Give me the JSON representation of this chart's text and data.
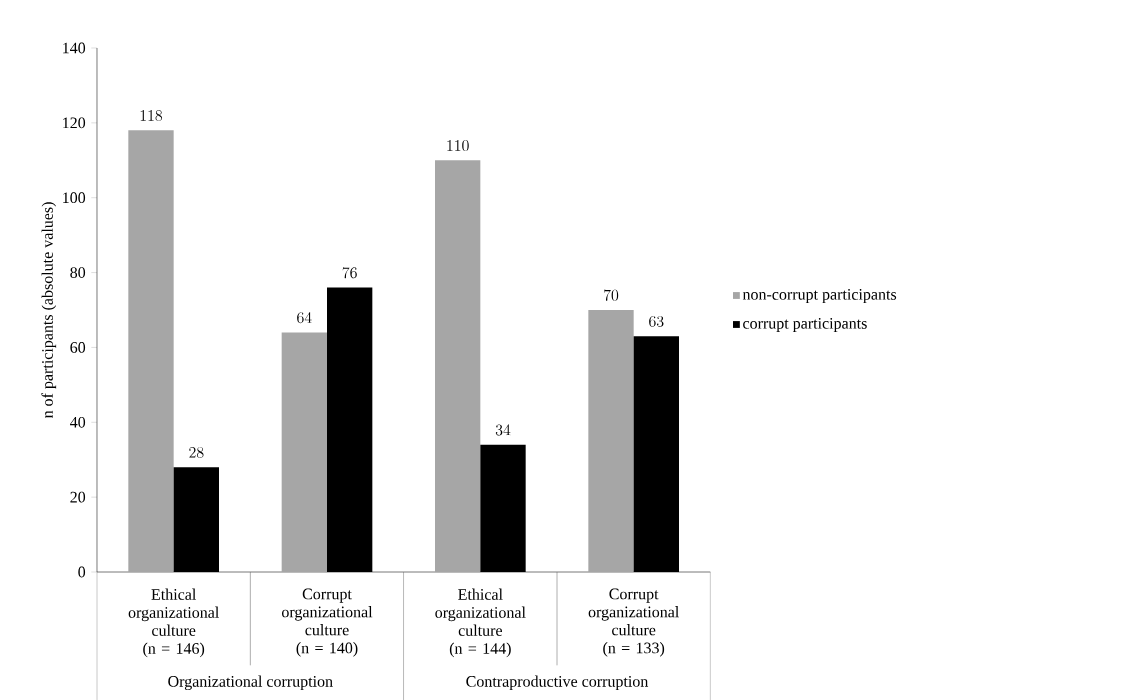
{
  "chart_data": {
    "type": "bar",
    "ylabel": "n of participants (absolute values)",
    "categories": [
      "Ethical organizational culture (n = 146)",
      "Corrupt organizational culture (n = 140)",
      "Ethical organizational culture (n = 144)",
      "Corrupt organizational culture (n = 133)"
    ],
    "series": [
      {
        "name": "non-corrupt participants",
        "color": "#a6a6a6",
        "values": [
          118,
          64,
          110,
          70
        ]
      },
      {
        "name": "corrupt participants",
        "color": "#000000",
        "values": [
          28,
          76,
          34,
          63
        ]
      }
    ],
    "ylim": [
      0,
      140
    ],
    "yticks": [
      0,
      20,
      40,
      60,
      80,
      100,
      120,
      140
    ],
    "data_labels": true,
    "legend": "right",
    "annotations": [
      "Organizational corruption",
      "Contraproductive corruption"
    ]
  }
}
